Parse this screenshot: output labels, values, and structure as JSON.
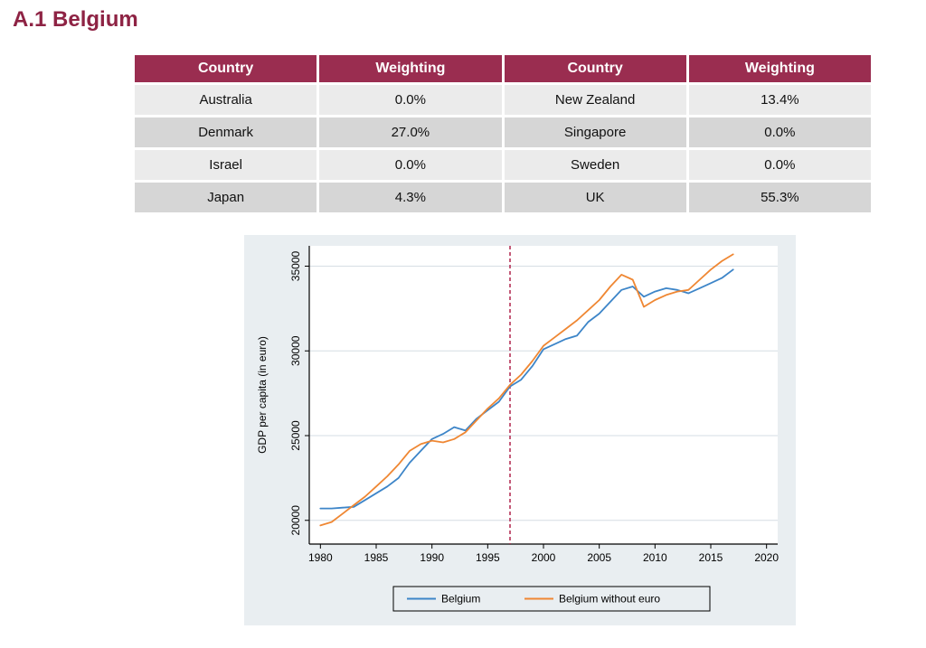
{
  "page": {
    "title": "A.1 Belgium"
  },
  "colors": {
    "title": "#8e2344",
    "table_header_bg": "#9a2d50",
    "row_light": "#ebebeb",
    "row_dark": "#d6d6d6"
  },
  "table": {
    "headers": [
      "Country",
      "Weighting",
      "Country",
      "Weighting"
    ],
    "rows": [
      [
        "Australia",
        "0.0%",
        "New Zealand",
        "13.4%"
      ],
      [
        "Denmark",
        "27.0%",
        "Singapore",
        "0.0%"
      ],
      [
        "Israel",
        "0.0%",
        "Sweden",
        "0.0%"
      ],
      [
        "Japan",
        "4.3%",
        "UK",
        "55.3%"
      ]
    ]
  },
  "chart_data": {
    "type": "line",
    "title": "",
    "xlabel": "",
    "ylabel": "GDP per capita (in euro)",
    "xlim": [
      1979,
      2021
    ],
    "ylim": [
      18600,
      36200
    ],
    "xticks": [
      1980,
      1985,
      1990,
      1995,
      2000,
      2005,
      2010,
      2015,
      2020
    ],
    "yticks": [
      20000,
      25000,
      30000,
      35000
    ],
    "grid": "horizontal",
    "legend_position": "bottom",
    "vline": {
      "x": 1997,
      "style": "dashed",
      "color": "#b1254d"
    },
    "colors": {
      "outer_bg": "#e9eef1",
      "plot_bg": "#ffffff",
      "grid": "#d6dee4",
      "axis": "#000000"
    },
    "x": [
      1980,
      1981,
      1982,
      1983,
      1984,
      1985,
      1986,
      1987,
      1988,
      1989,
      1990,
      1991,
      1992,
      1993,
      1994,
      1995,
      1996,
      1997,
      1998,
      1999,
      2000,
      2001,
      2002,
      2003,
      2004,
      2005,
      2006,
      2007,
      2008,
      2009,
      2010,
      2011,
      2012,
      2013,
      2014,
      2015,
      2016,
      2017
    ],
    "series": [
      {
        "name": "Belgium",
        "color": "#3d85c8",
        "values": [
          20700,
          20700,
          20750,
          20800,
          21200,
          21600,
          22000,
          22500,
          23400,
          24100,
          24800,
          25100,
          25500,
          25300,
          26000,
          26500,
          27000,
          27900,
          28300,
          29100,
          30100,
          30400,
          30700,
          30900,
          31700,
          32200,
          32900,
          33600,
          33800,
          33200,
          33500,
          33700,
          33600,
          33400,
          33700,
          34000,
          34300,
          34800
        ]
      },
      {
        "name": "Belgium without euro",
        "color": "#ef8733",
        "values": [
          19700,
          19900,
          20400,
          20900,
          21400,
          22000,
          22600,
          23300,
          24100,
          24500,
          24700,
          24600,
          24800,
          25200,
          25900,
          26600,
          27200,
          28000,
          28600,
          29400,
          30300,
          30800,
          31300,
          31800,
          32400,
          33000,
          33800,
          34500,
          34200,
          32600,
          33000,
          33300,
          33500,
          33600,
          34200,
          34800,
          35300,
          35700
        ]
      }
    ]
  }
}
